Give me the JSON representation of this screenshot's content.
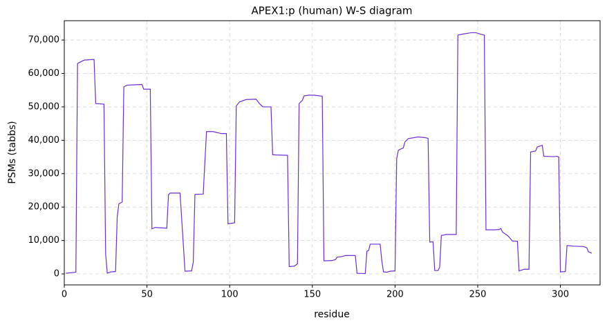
{
  "chart_data": {
    "type": "line",
    "title": "APEX1:p (human) W-S diagram",
    "x_label": "residue",
    "y_label": "PSMs (tabbs)",
    "xlim": [
      0,
      324
    ],
    "ylim": [
      -3300,
      75800
    ],
    "xticks": [
      0,
      50,
      100,
      150,
      200,
      250,
      300
    ],
    "yticks": [
      0,
      {
        "value": 10000,
        "label": "10,000"
      },
      {
        "value": 20000,
        "label": "20,000"
      },
      {
        "value": 30000,
        "label": "30,000"
      },
      {
        "value": 40000,
        "label": "40,000"
      },
      {
        "value": 50000,
        "label": "50,000"
      },
      {
        "value": 60000,
        "label": "60,000"
      },
      {
        "value": 70000,
        "label": "70,000"
      }
    ],
    "grid": true,
    "x": [
      1,
      7,
      8,
      10,
      12,
      18,
      19,
      24,
      25,
      26,
      28,
      31,
      32,
      33,
      35,
      36,
      38,
      42,
      47,
      48,
      52,
      53,
      55,
      62,
      63,
      64,
      70,
      73,
      77,
      78,
      79,
      84,
      86,
      90,
      95,
      98,
      99,
      103,
      104,
      106,
      110,
      116,
      118,
      120,
      125,
      126,
      128,
      135,
      136,
      139,
      141,
      142,
      144,
      145,
      148,
      151,
      156,
      157,
      162,
      164,
      165,
      168,
      170,
      176,
      177,
      182,
      183,
      184,
      185,
      191,
      192,
      193,
      195,
      197,
      200,
      201,
      202,
      204,
      205,
      206,
      208,
      214,
      218,
      220,
      221,
      223,
      224,
      226,
      227,
      228,
      231,
      237,
      238,
      241,
      246,
      249,
      252,
      254,
      255,
      260,
      263,
      264,
      265,
      268,
      269,
      271,
      274,
      275,
      277,
      278,
      281,
      282,
      285,
      286,
      289,
      290,
      296,
      298,
      299,
      300,
      303,
      304,
      308,
      314,
      316,
      317,
      319
    ],
    "series": [
      {
        "name": "APEX1:p (human)",
        "color": "#6a2ed6",
        "values": [
          200,
          500,
          63000,
          63500,
          64000,
          64200,
          51000,
          50800,
          6000,
          200,
          600,
          700,
          17000,
          21000,
          21500,
          56000,
          56500,
          56600,
          56700,
          55300,
          55300,
          13500,
          13900,
          13700,
          23700,
          24200,
          24200,
          800,
          900,
          3500,
          23800,
          23900,
          42600,
          42600,
          42000,
          42000,
          15000,
          15300,
          50300,
          51500,
          52200,
          52300,
          51000,
          50000,
          50000,
          35700,
          35600,
          35500,
          2200,
          2300,
          3000,
          51000,
          52000,
          53300,
          53500,
          53500,
          53200,
          3900,
          4000,
          4300,
          5000,
          5200,
          5500,
          5500,
          200,
          100,
          6800,
          7000,
          8900,
          8900,
          4000,
          600,
          500,
          800,
          900,
          34500,
          37000,
          37500,
          37700,
          39500,
          40500,
          41000,
          40800,
          40600,
          9500,
          9600,
          1000,
          1000,
          2000,
          11500,
          11800,
          11800,
          71500,
          71800,
          72200,
          72200,
          71700,
          71500,
          13200,
          13200,
          13300,
          13600,
          12500,
          11500,
          11000,
          9800,
          9800,
          900,
          1200,
          1400,
          1400,
          36500,
          36800,
          38000,
          38500,
          35200,
          35100,
          35200,
          35000,
          600,
          700,
          8500,
          8300,
          8200,
          7800,
          6600,
          6200
        ]
      }
    ]
  }
}
